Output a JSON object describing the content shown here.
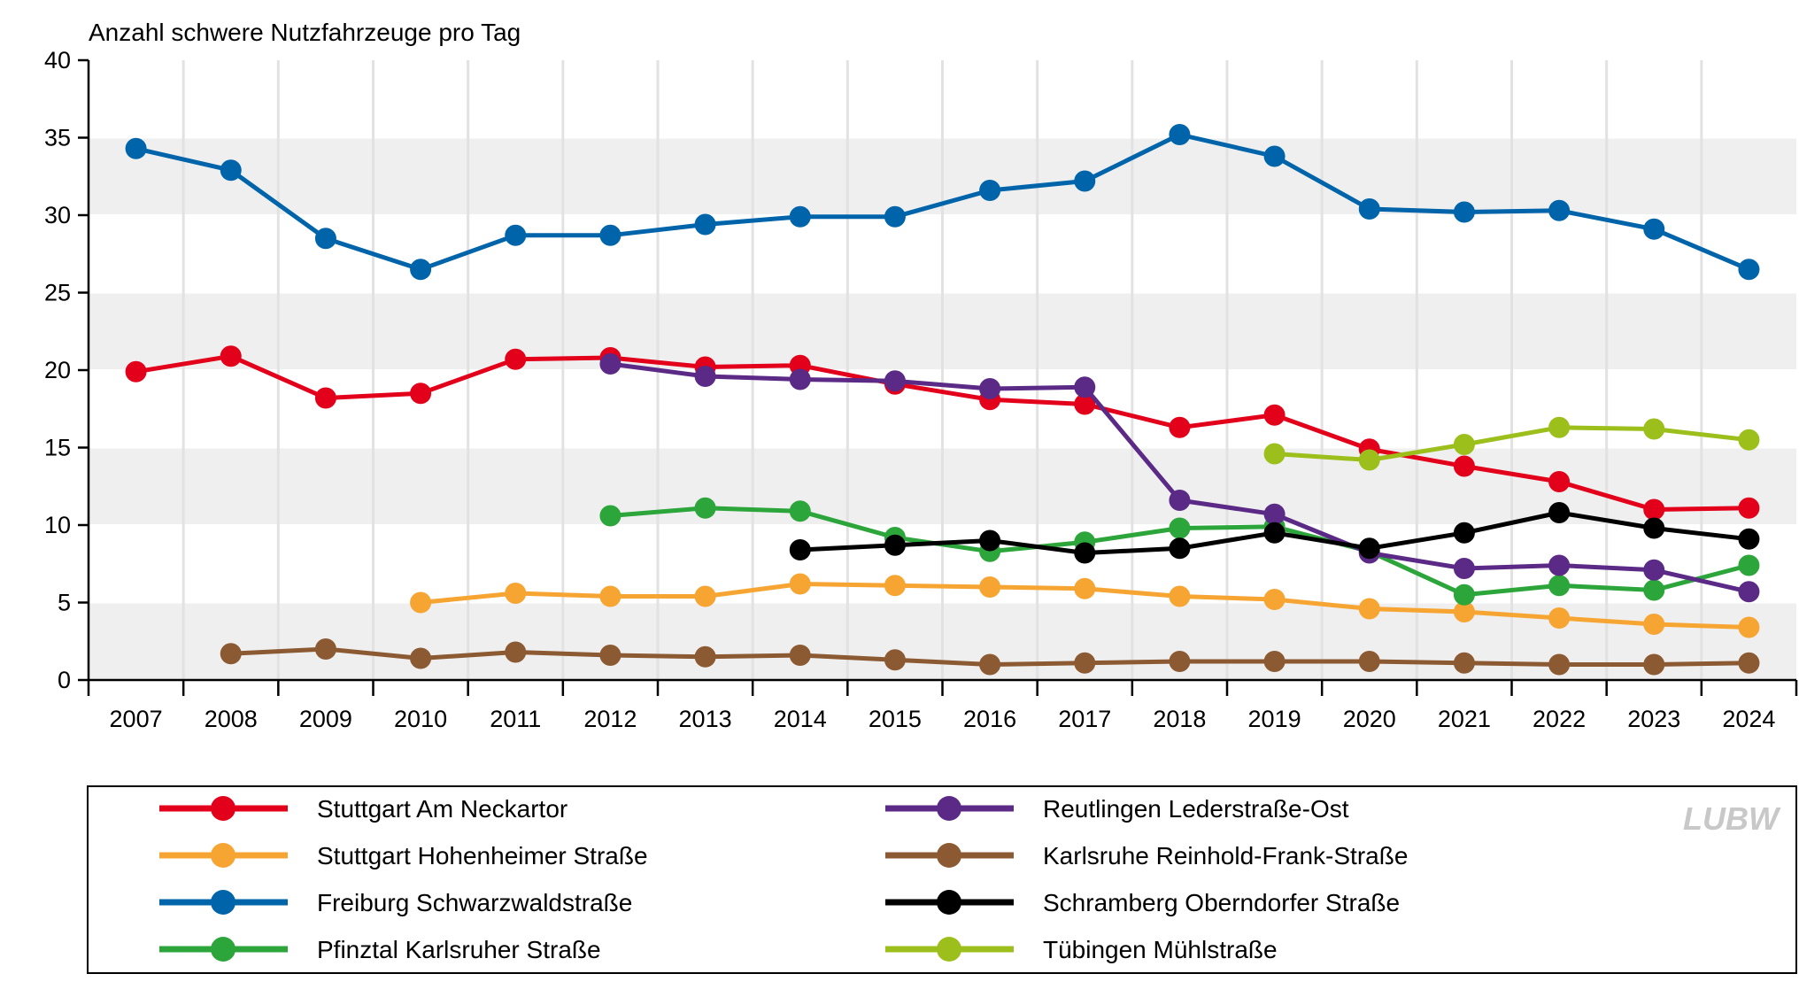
{
  "chart_data": {
    "type": "line",
    "ylabel": "Anzahl schwere Nutzfahrzeuge pro Tag",
    "ylim": [
      0,
      40
    ],
    "yticks": [
      0,
      5,
      10,
      15,
      20,
      25,
      30,
      35,
      40
    ],
    "x": [
      "2007",
      "2008",
      "2009",
      "2010",
      "2011",
      "2012",
      "2013",
      "2014",
      "2015",
      "2016",
      "2017",
      "2018",
      "2019",
      "2020",
      "2021",
      "2022",
      "2023",
      "2024"
    ],
    "grid": "horizontal bands",
    "legend_position": "bottom",
    "series": [
      {
        "name": "Stuttgart Am Neckartor",
        "color": "#e2001a",
        "values": [
          19.9,
          20.9,
          18.2,
          18.5,
          20.7,
          20.8,
          20.2,
          20.3,
          19.1,
          18.1,
          17.8,
          16.3,
          17.1,
          14.9,
          13.8,
          12.8,
          11.0,
          11.1
        ]
      },
      {
        "name": "Stuttgart Hohenheimer Straße",
        "color": "#f7a532",
        "values": [
          null,
          null,
          null,
          5.0,
          5.6,
          5.4,
          5.4,
          6.2,
          6.1,
          6.0,
          5.9,
          5.4,
          5.2,
          4.6,
          4.4,
          4.0,
          3.6,
          3.4
        ]
      },
      {
        "name": "Freiburg Schwarzwaldstraße",
        "color": "#0064aa",
        "values": [
          34.3,
          32.9,
          28.5,
          26.5,
          28.7,
          28.7,
          29.4,
          29.9,
          29.9,
          31.6,
          32.2,
          35.2,
          33.8,
          30.4,
          30.2,
          30.3,
          29.1,
          26.5
        ]
      },
      {
        "name": "Pfinztal Karlsruher Straße",
        "color": "#2ca53b",
        "values": [
          null,
          null,
          null,
          null,
          null,
          10.6,
          11.1,
          10.9,
          9.2,
          8.3,
          8.9,
          9.8,
          9.9,
          8.3,
          5.5,
          6.1,
          5.8,
          7.4
        ]
      },
      {
        "name": "Reutlingen Lederstraße-Ost",
        "color": "#5b2a86",
        "values": [
          null,
          null,
          null,
          null,
          null,
          20.4,
          19.6,
          19.4,
          19.3,
          18.8,
          18.9,
          11.6,
          10.7,
          8.2,
          7.2,
          7.4,
          7.1,
          5.7
        ]
      },
      {
        "name": "Karlsruhe Reinhold-Frank-Straße",
        "color": "#8c5a32",
        "values": [
          null,
          1.7,
          2.0,
          1.4,
          1.8,
          1.6,
          1.5,
          1.6,
          1.3,
          1.0,
          1.1,
          1.2,
          1.2,
          1.2,
          1.1,
          1.0,
          1.0,
          1.1
        ]
      },
      {
        "name": "Schramberg Oberndorfer Straße",
        "color": "#000000",
        "values": [
          null,
          null,
          null,
          null,
          null,
          null,
          null,
          8.4,
          8.7,
          9.0,
          8.2,
          8.5,
          9.5,
          8.5,
          9.5,
          10.8,
          9.8,
          9.1
        ]
      },
      {
        "name": "Tübingen Mühlstraße",
        "color": "#9cbf1c",
        "values": [
          null,
          null,
          null,
          null,
          null,
          null,
          null,
          null,
          null,
          null,
          null,
          null,
          14.6,
          14.2,
          15.2,
          16.3,
          16.2,
          15.5
        ]
      }
    ],
    "legend_order": [
      0,
      4,
      1,
      5,
      2,
      6,
      3,
      7
    ]
  },
  "logo": {
    "text": "LUBW",
    "color": "#c8c8c8"
  }
}
